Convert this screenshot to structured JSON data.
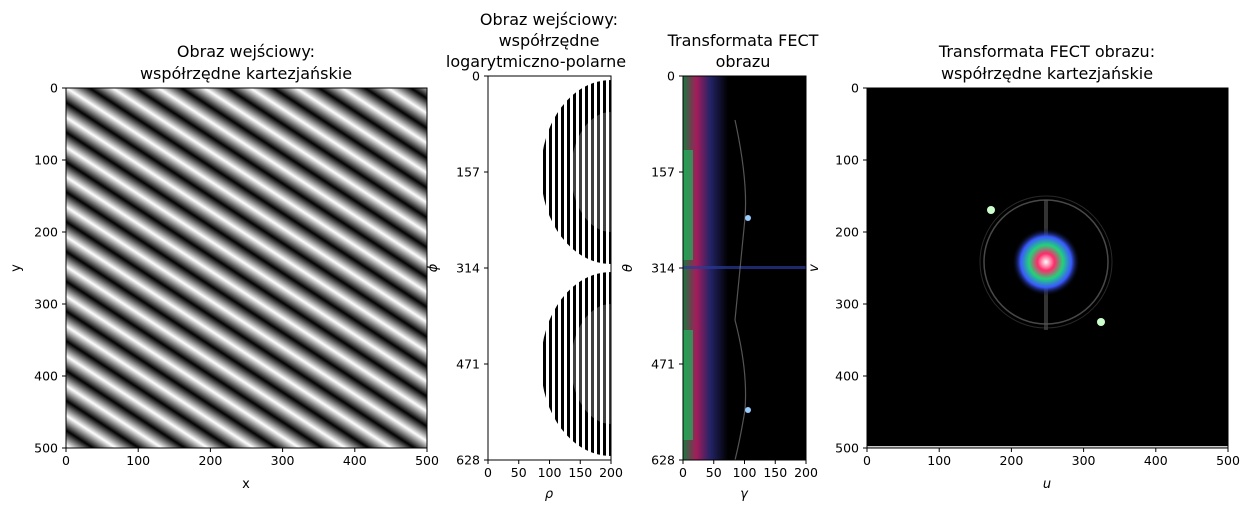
{
  "chart_data": [
    {
      "type": "heatmap",
      "title": [
        "Obraz wejściowy:",
        "współrzędne kartezjańskie"
      ],
      "xlabel": "x",
      "ylabel": "y",
      "xlim": [
        0,
        500
      ],
      "ylim": [
        500,
        0
      ],
      "xticks": [
        0,
        100,
        200,
        300,
        400,
        500
      ],
      "yticks": [
        0,
        100,
        200,
        300,
        400,
        500
      ],
      "content": "grayscale diagonal sinusoidal stripes"
    },
    {
      "type": "heatmap",
      "title": [
        "Obraz wejściowy:",
        "współrzędne",
        "logarytmiczno-polarne"
      ],
      "xlabel": "ρ",
      "ylabel": "ϕ",
      "xlim": [
        0,
        200
      ],
      "ylim": [
        628,
        0
      ],
      "xticks": [
        0,
        50,
        100,
        150,
        200
      ],
      "yticks": [
        0,
        157,
        314,
        471,
        628
      ],
      "content": "grayscale log-polar image, two semicircular fringe regions"
    },
    {
      "type": "heatmap",
      "title": [
        "Transformata FECT",
        "obrazu"
      ],
      "xlabel": "γ",
      "ylabel": "θ",
      "xlim": [
        0,
        200
      ],
      "ylim": [
        628,
        0
      ],
      "xticks": [
        0,
        50,
        100,
        150,
        200
      ],
      "yticks": [
        0,
        157,
        314,
        471,
        628
      ],
      "content": "complex-valued (hue = phase) transform on black background"
    },
    {
      "type": "heatmap",
      "title": [
        "Transformata FECT obrazu:",
        "współrzędne kartezjańskie"
      ],
      "xlabel": "u",
      "ylabel": "v",
      "xlim": [
        0,
        500
      ],
      "ylim": [
        500,
        0
      ],
      "xticks": [
        0,
        100,
        200,
        300,
        400,
        500
      ],
      "yticks": [
        0,
        100,
        200,
        300,
        400,
        500
      ],
      "content": "complex-valued transform: colorful central blob with faint ring on black"
    }
  ]
}
